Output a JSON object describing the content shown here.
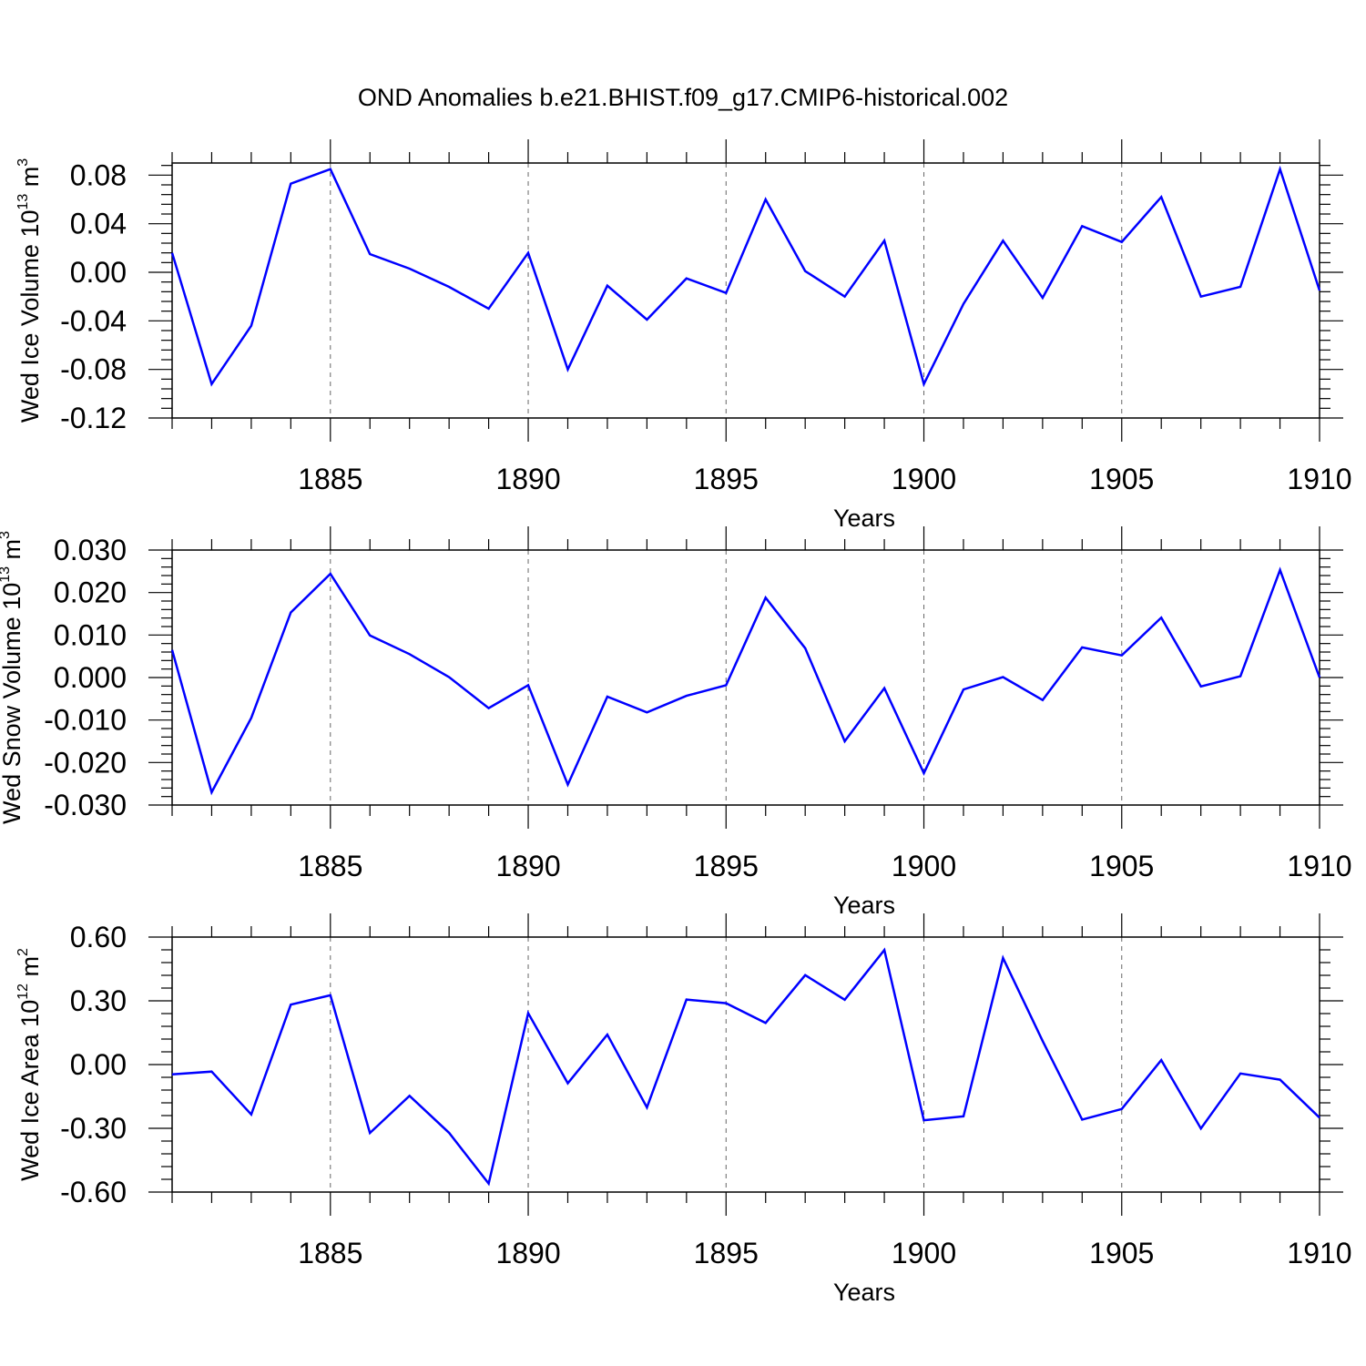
{
  "title": "OND Anomalies b.e21.BHIST.f09_g17.CMIP6-historical.002",
  "colors": {
    "series": "#0000ff",
    "axis": "#000000",
    "grid": "#666666"
  },
  "chart_data": [
    {
      "type": "line",
      "xlabel": "Years",
      "ylabel": {
        "text": "Wed Ice Volume 10",
        "exp": "13",
        "unit": " m",
        "unit_exp": "3"
      },
      "xlim": [
        1881,
        1910
      ],
      "ylim": [
        -0.12,
        0.09
      ],
      "xticks": [
        1885,
        1890,
        1895,
        1900,
        1905,
        1910
      ],
      "yticks": [
        0.08,
        0.04,
        0.0,
        -0.04,
        -0.08,
        -0.12
      ],
      "ytick_labels": [
        "0.08",
        "0.04",
        "0.00",
        "-0.04",
        "-0.08",
        "-0.12"
      ],
      "grid": "vertical-dashed-at-major-x",
      "x": [
        1881,
        1882,
        1883,
        1884,
        1885,
        1886,
        1887,
        1888,
        1889,
        1890,
        1891,
        1892,
        1893,
        1894,
        1895,
        1896,
        1897,
        1898,
        1899,
        1900,
        1901,
        1902,
        1903,
        1904,
        1905,
        1906,
        1907,
        1908,
        1909,
        1910
      ],
      "series": [
        {
          "values": [
            0.016,
            -0.092,
            -0.044,
            0.073,
            0.085,
            0.015,
            0.003,
            -0.012,
            -0.03,
            0.016,
            -0.08,
            -0.011,
            -0.039,
            -0.005,
            -0.017,
            0.06,
            0.001,
            -0.02,
            0.026,
            -0.092,
            -0.026,
            0.026,
            -0.021,
            0.038,
            0.025,
            0.062,
            -0.02,
            -0.012,
            0.085,
            -0.015
          ]
        }
      ]
    },
    {
      "type": "line",
      "xlabel": "Years",
      "ylabel": {
        "text": "Wed Snow Volume 10",
        "exp": "13",
        "unit": " m",
        "unit_exp": "3"
      },
      "xlim": [
        1881,
        1910
      ],
      "ylim": [
        -0.03,
        0.03
      ],
      "xticks": [
        1885,
        1890,
        1895,
        1900,
        1905,
        1910
      ],
      "yticks": [
        0.03,
        0.02,
        0.01,
        0.0,
        -0.01,
        -0.02,
        -0.03
      ],
      "ytick_labels": [
        "0.030",
        "0.020",
        "0.010",
        "0.000",
        "-0.010",
        "-0.020",
        "-0.030"
      ],
      "grid": "vertical-dashed-at-major-x",
      "x": [
        1881,
        1882,
        1883,
        1884,
        1885,
        1886,
        1887,
        1888,
        1889,
        1890,
        1891,
        1892,
        1893,
        1894,
        1895,
        1896,
        1897,
        1898,
        1899,
        1900,
        1901,
        1902,
        1903,
        1904,
        1905,
        1906,
        1907,
        1908,
        1909,
        1910
      ],
      "series": [
        {
          "values": [
            0.0065,
            -0.027,
            -0.0095,
            0.0153,
            0.0244,
            0.0099,
            0.0055,
            0.0001,
            -0.0072,
            -0.0018,
            -0.0252,
            -0.0045,
            -0.0082,
            -0.0043,
            -0.0018,
            0.0188,
            0.0069,
            -0.015,
            -0.0025,
            -0.0225,
            -0.0028,
            0.0001,
            -0.0053,
            0.0071,
            0.0052,
            0.0141,
            -0.0021,
            0.0003,
            0.0253,
            0.0
          ]
        }
      ]
    },
    {
      "type": "line",
      "xlabel": "Years",
      "ylabel": {
        "text": "Wed Ice Area 10",
        "exp": "12",
        "unit": " m",
        "unit_exp": "2"
      },
      "xlim": [
        1881,
        1910
      ],
      "ylim": [
        -0.6,
        0.6
      ],
      "xticks": [
        1885,
        1890,
        1895,
        1900,
        1905,
        1910
      ],
      "yticks": [
        0.6,
        0.3,
        0.0,
        -0.3,
        -0.6
      ],
      "ytick_labels": [
        "0.60",
        "0.30",
        "0.00",
        "-0.30",
        "-0.60"
      ],
      "grid": "vertical-dashed-at-major-x",
      "x": [
        1881,
        1882,
        1883,
        1884,
        1885,
        1886,
        1887,
        1888,
        1889,
        1890,
        1891,
        1892,
        1893,
        1894,
        1895,
        1896,
        1897,
        1898,
        1899,
        1900,
        1901,
        1902,
        1903,
        1904,
        1905,
        1906,
        1907,
        1908,
        1909,
        1910
      ],
      "series": [
        {
          "values": [
            -0.046,
            -0.033,
            -0.235,
            0.282,
            0.326,
            -0.322,
            -0.147,
            -0.321,
            -0.56,
            0.242,
            -0.088,
            0.141,
            -0.202,
            0.306,
            0.289,
            0.196,
            0.421,
            0.305,
            0.539,
            -0.262,
            -0.244,
            0.502,
            0.111,
            -0.259,
            -0.209,
            0.021,
            -0.301,
            -0.042,
            -0.071,
            -0.25
          ]
        }
      ]
    }
  ]
}
